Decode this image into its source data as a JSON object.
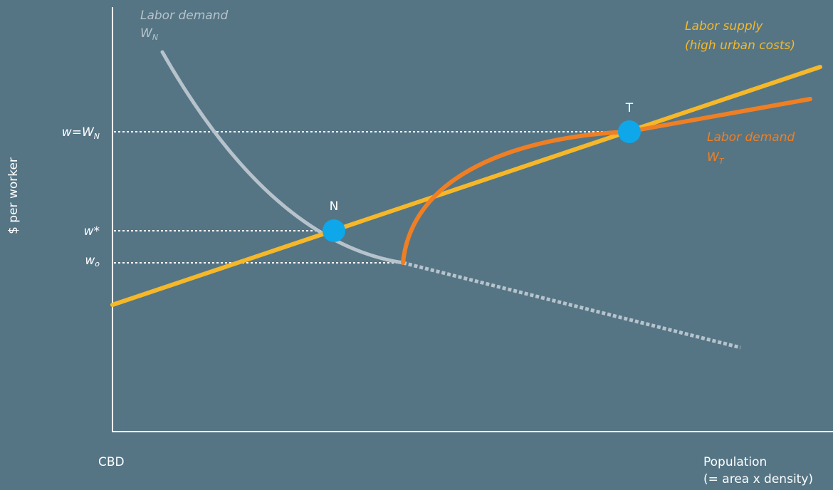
{
  "colors": {
    "background": "#557585",
    "axis": "#ffffff",
    "guide": "#ffffff",
    "supply": "#f6b829",
    "demand_n": "#b7c3cc",
    "demand_t": "#f07f23",
    "point": "#0ea7ea"
  },
  "axes": {
    "y_label": "$ per worker",
    "x_origin_label": "CBD",
    "x_label_line1": "Population",
    "x_label_line2": "(= area x density)"
  },
  "wage_levels": {
    "w_top": "w=W",
    "w_top_sub": "N",
    "w_star": "w*",
    "w_o": "w",
    "w_o_sub": "o"
  },
  "curves": {
    "demand_n_line1": "Labor demand",
    "demand_n_line2": "W",
    "demand_n_sub": "N",
    "supply_line1": "Labor supply",
    "supply_line2": "(high urban costs)",
    "demand_t_line1": "Labor demand",
    "demand_t_line2": "W",
    "demand_t_sub": "T"
  },
  "points": {
    "n": "N",
    "t": "T"
  }
}
